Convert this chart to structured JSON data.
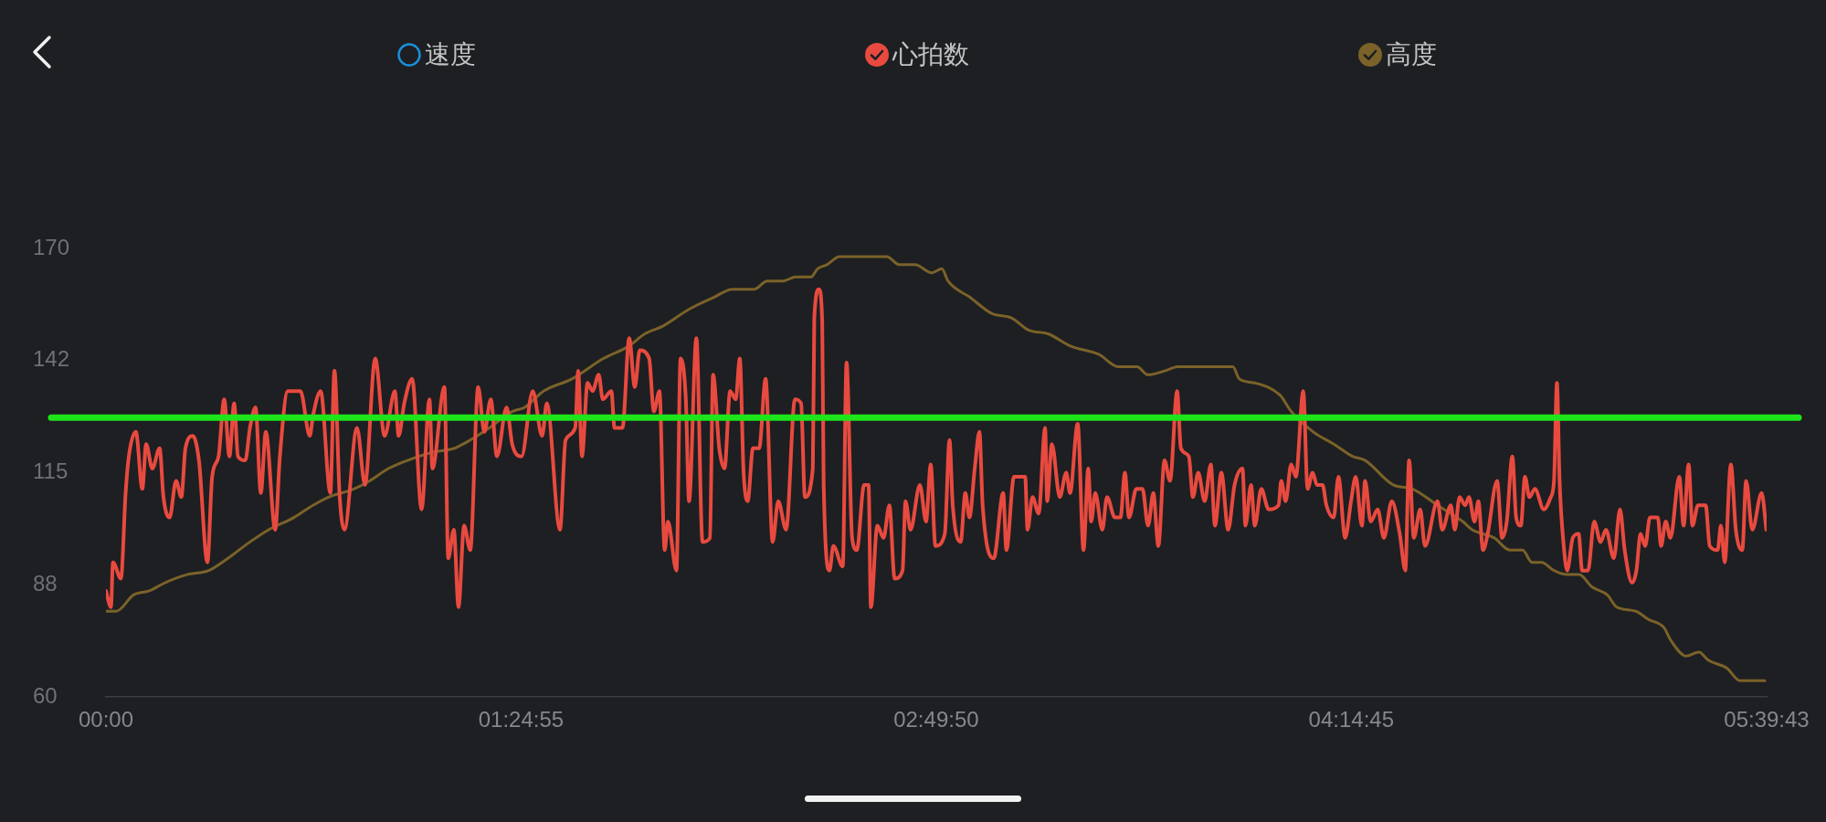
{
  "chart_data": {
    "type": "line",
    "legend": "top",
    "xlim": [
      0,
      5.66194
    ],
    "xticks": [
      {
        "value": 0,
        "label": "00:00"
      },
      {
        "value": 1.41528,
        "label": "01:24:55"
      },
      {
        "value": 2.83056,
        "label": "02:49:50"
      },
      {
        "value": 4.24583,
        "label": "04:14:45"
      },
      {
        "value": 5.66194,
        "label": "05:39:43"
      }
    ],
    "ylim": [
      60,
      170
    ],
    "yticks": [
      60,
      {
        "value": 87.5,
        "label": "88"
      },
      115,
      {
        "value": 142.5,
        "label": "142"
      },
      170
    ],
    "ref_lines": [
      {
        "axis": "y",
        "value": 128.5,
        "color": "#1de51a"
      }
    ],
    "series": [
      {
        "name": "速度",
        "color": "#1a8fd8"
      },
      {
        "name": "心拍数",
        "color": "#e84a3f",
        "x": [
          0,
          0.017,
          0.024,
          0.051,
          0.067,
          0.078,
          0.102,
          0.124,
          0.137,
          0.158,
          0.183,
          0.196,
          0.217,
          0.239,
          0.257,
          0.271,
          0.296,
          0.317,
          0.346,
          0.362,
          0.384,
          0.403,
          0.421,
          0.437,
          0.45,
          0.475,
          0.491,
          0.51,
          0.528,
          0.545,
          0.577,
          0.593,
          0.62,
          0.663,
          0.695,
          0.706,
          0.732,
          0.765,
          0.779,
          0.797,
          0.813,
          0.856,
          0.883,
          0.918,
          0.95,
          0.985,
          0.998,
          1.017,
          1.044,
          1.076,
          1.103,
          1.113,
          1.154,
          1.167,
          1.186,
          1.202,
          1.221,
          1.242,
          1.269,
          1.29,
          1.312,
          1.333,
          1.366,
          1.385,
          1.417,
          1.455,
          1.487,
          1.503,
          1.548,
          1.567,
          1.6,
          1.61,
          1.623,
          1.642,
          1.659,
          1.68,
          1.694,
          1.723,
          1.734,
          1.761,
          1.784,
          1.803,
          1.82,
          1.852,
          1.868,
          1.887,
          1.905,
          1.916,
          1.945,
          1.959,
          1.977,
          1.988,
          2.013,
          2.034,
          2.059,
          2.07,
          2.091,
          2.109,
          2.128,
          2.147,
          2.161,
          2.174,
          2.188,
          2.206,
          2.227,
          2.249,
          2.273,
          2.292,
          2.319,
          2.349,
          2.37,
          2.383,
          2.41,
          2.415,
          2.431,
          2.442,
          2.447,
          2.467,
          2.48,
          2.512,
          2.525,
          2.544,
          2.56,
          2.585,
          2.6,
          2.608,
          2.63,
          2.651,
          2.671,
          2.689,
          2.716,
          2.726,
          2.743,
          2.775,
          2.796,
          2.812,
          2.828,
          2.86,
          2.876,
          2.887,
          2.914,
          2.93,
          2.944,
          2.962,
          2.978,
          2.989,
          3.027,
          3.059,
          3.07,
          3.096,
          3.134,
          3.142,
          3.159,
          3.18,
          3.202,
          3.209,
          3.225,
          3.252,
          3.274,
          3.287,
          3.313,
          3.333,
          3.349,
          3.359,
          3.373,
          3.397,
          3.413,
          3.44,
          3.459,
          3.474,
          3.488,
          3.513,
          3.534,
          3.553,
          3.571,
          3.588,
          3.609,
          3.628,
          3.652,
          3.665,
          3.692,
          3.706,
          3.724,
          3.746,
          3.767,
          3.781,
          3.803,
          3.826,
          3.848,
          3.875,
          3.885,
          3.904,
          3.917,
          3.939,
          3.964,
          3.998,
          4.007,
          4.022,
          4.041,
          4.057,
          4.082,
          4.097,
          4.114,
          4.129,
          4.148,
          4.161,
          4.186,
          4.202,
          4.225,
          4.245,
          4.261,
          4.282,
          4.293,
          4.312,
          4.336,
          4.357,
          4.384,
          4.411,
          4.43,
          4.443,
          4.459,
          4.481,
          4.497,
          4.54,
          4.556,
          4.585,
          4.599,
          4.615,
          4.634,
          4.647,
          4.666,
          4.679,
          4.695,
          4.711,
          4.743,
          4.76,
          4.776,
          4.795,
          4.808,
          4.824,
          4.838,
          4.853,
          4.872,
          4.902,
          4.926,
          4.937,
          4.947,
          4.956,
          4.969,
          4.982,
          5.001,
          5.021,
          5.033,
          5.053,
          5.074,
          5.096,
          5.114,
          5.141,
          5.162,
          5.178,
          5.203,
          5.218,
          5.232,
          5.248,
          5.264,
          5.291,
          5.302,
          5.318,
          5.334,
          5.364,
          5.379,
          5.396,
          5.409,
          5.428,
          5.454,
          5.468,
          5.495,
          5.506,
          5.519,
          5.54,
          5.557,
          5.579,
          5.592,
          5.613,
          5.645,
          5.661
        ],
        "values": [
          86,
          82,
          93,
          89,
          110,
          119,
          125,
          111,
          122,
          116,
          121,
          109,
          104,
          113,
          109,
          121,
          124,
          118,
          93,
          114,
          119,
          133,
          119,
          132,
          119,
          118,
          126,
          131,
          110,
          125,
          101,
          119,
          135,
          135,
          124,
          129,
          135,
          110,
          140,
          109,
          101,
          126,
          112,
          143,
          124,
          135,
          124,
          132,
          138,
          106,
          133,
          116,
          136,
          94,
          101,
          82,
          102,
          96,
          136,
          125,
          133,
          119,
          131,
          122,
          119,
          135,
          124,
          132,
          101,
          123,
          126,
          140,
          119,
          137,
          135,
          139,
          133,
          135,
          126,
          126,
          148,
          136,
          145,
          143,
          130,
          135,
          96,
          103,
          91,
          143,
          133,
          108,
          148,
          98,
          99,
          139,
          121,
          116,
          135,
          133,
          143,
          115,
          108,
          121,
          121,
          138,
          98,
          108,
          101,
          133,
          132,
          109,
          116,
          153,
          160,
          152,
          112,
          91,
          97,
          92,
          142,
          99,
          96,
          112,
          112,
          82,
          102,
          99,
          107,
          89,
          91,
          108,
          101,
          112,
          103,
          117,
          97,
          100,
          123,
          107,
          98,
          110,
          104,
          116,
          125,
          107,
          94,
          110,
          96,
          114,
          114,
          101,
          109,
          105,
          126,
          108,
          122,
          109,
          115,
          110,
          127,
          96,
          116,
          103,
          110,
          101,
          109,
          104,
          104,
          115,
          104,
          111,
          111,
          102,
          110,
          97,
          118,
          113,
          135,
          121,
          119,
          109,
          115,
          108,
          117,
          102,
          115,
          101,
          112,
          116,
          102,
          112,
          102,
          111,
          106,
          107,
          113,
          108,
          117,
          114,
          135,
          111,
          115,
          112,
          112,
          107,
          104,
          114,
          99,
          108,
          114,
          102,
          113,
          103,
          106,
          99,
          108,
          100,
          91,
          118,
          99,
          106,
          97,
          108,
          101,
          107,
          101,
          109,
          107,
          109,
          103,
          108,
          96,
          100,
          113,
          99,
          103,
          119,
          104,
          102,
          114,
          109,
          111,
          106,
          109,
          113,
          137,
          113,
          98,
          91,
          99,
          100,
          91,
          91,
          103,
          98,
          101,
          94,
          106,
          96,
          88,
          91,
          100,
          97,
          104,
          104,
          97,
          103,
          99,
          114,
          102,
          117,
          102,
          107,
          107,
          97,
          96,
          102,
          93,
          117,
          101,
          96,
          113,
          101,
          110,
          101
        ]
      },
      {
        "name": "高度",
        "color": "#7b6229",
        "x": [
          0,
          0.035,
          0.094,
          0.148,
          0.201,
          0.276,
          0.351,
          0.416,
          0.491,
          0.555,
          0.641,
          0.706,
          0.759,
          0.845,
          0.899,
          0.963,
          1.028,
          1.113,
          1.189,
          1.242,
          1.307,
          1.385,
          1.428,
          1.492,
          1.589,
          1.696,
          1.782,
          1.836,
          1.9,
          1.986,
          2.072,
          2.136,
          2.211,
          2.254,
          2.308,
          2.351,
          2.404,
          2.426,
          2.458,
          2.501,
          2.662,
          2.705,
          2.759,
          2.815,
          2.85,
          2.871,
          2.946,
          3.021,
          3.086,
          3.145,
          3.214,
          3.29,
          3.386,
          3.451,
          3.515,
          3.553,
          3.612,
          3.654,
          3.719,
          3.842,
          3.864,
          3.917,
          4.003,
          4.041,
          4.116,
          4.186,
          4.25,
          4.293,
          4.389,
          4.454,
          4.54,
          4.626,
          4.658,
          4.733,
          4.787,
          4.83,
          4.862,
          4.894,
          4.937,
          4.98,
          5.023,
          5.066,
          5.119,
          5.151,
          5.216,
          5.259,
          5.312,
          5.334,
          5.388,
          5.431,
          5.463,
          5.527,
          5.57,
          5.602,
          5.623,
          5.656
        ],
        "values": [
          81,
          81,
          85,
          86,
          88,
          90,
          91,
          94,
          98,
          101,
          104,
          107,
          109,
          111,
          113,
          116,
          118,
          120,
          121,
          123,
          126,
          130,
          131,
          135,
          138,
          143,
          146,
          149,
          151,
          155,
          158,
          160,
          160,
          162,
          162,
          163,
          163,
          165,
          166,
          168,
          168,
          166,
          166,
          164,
          165,
          162,
          158,
          154,
          153,
          150,
          149,
          146,
          144,
          141,
          141,
          139,
          140,
          141,
          141,
          141,
          138,
          137,
          134,
          130,
          125,
          122,
          119,
          118,
          112,
          111,
          107,
          103,
          101,
          99,
          96,
          96,
          93,
          93,
          91,
          90,
          90,
          87,
          85,
          82,
          81,
          79,
          77,
          74,
          70,
          71,
          69,
          67,
          64,
          64,
          64,
          64
        ]
      }
    ]
  }
}
